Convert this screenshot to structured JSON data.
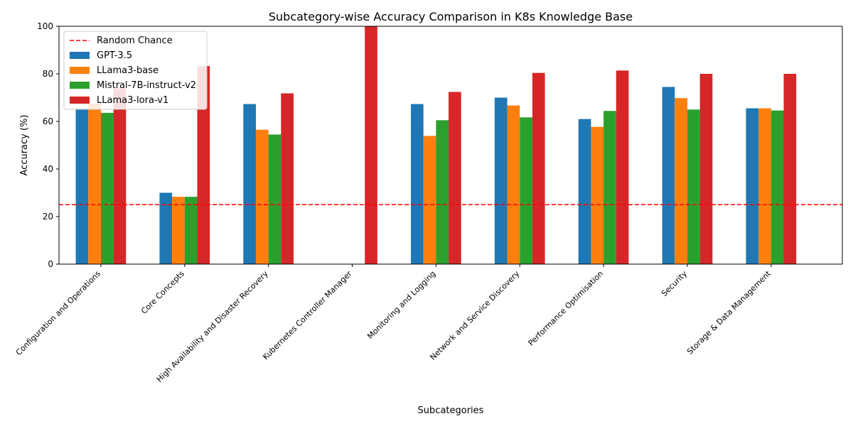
{
  "chart_data": {
    "type": "bar",
    "title": "Subcategory-wise Accuracy Comparison in K8s Knowledge Base",
    "xlabel": "Subcategories",
    "ylabel": "Accuracy (%)",
    "ylim": [
      0,
      100
    ],
    "yticks": [
      0,
      20,
      40,
      60,
      80,
      100
    ],
    "categories": [
      "Configuration and Operations",
      "Core Concepts",
      "High Availability and Disaster Recovery",
      "Kubernetes Controller Manager",
      "Monitoring and Logging",
      "Network and Service Discovery",
      "Performance Optimisation",
      "Security",
      "Storage & Data Management"
    ],
    "series": [
      {
        "name": "GPT-3.5",
        "color": "#1f77b4",
        "values": [
          65.5,
          30,
          67.3,
          0,
          67.3,
          70,
          61,
          74.5,
          65.5
        ]
      },
      {
        "name": "LLama3-base",
        "color": "#ff7f0e",
        "values": [
          67.5,
          28.3,
          56.5,
          0,
          53.9,
          66.7,
          57.7,
          69.8,
          65.5
        ]
      },
      {
        "name": "Mistral-7B-instruct-v2",
        "color": "#2ca02c",
        "values": [
          63.6,
          28.3,
          54.5,
          0,
          60.5,
          61.7,
          64.4,
          65,
          64.6
        ]
      },
      {
        "name": "LLama3-lora-v1",
        "color": "#d62728",
        "values": [
          73.8,
          83.3,
          71.8,
          100,
          72.4,
          80.4,
          81.4,
          80,
          80
        ]
      }
    ],
    "reference_line": {
      "name": "Random Chance",
      "value": 25,
      "color": "#ff0000",
      "style": "dashed"
    },
    "legend_position": "top-left",
    "grid": false
  }
}
